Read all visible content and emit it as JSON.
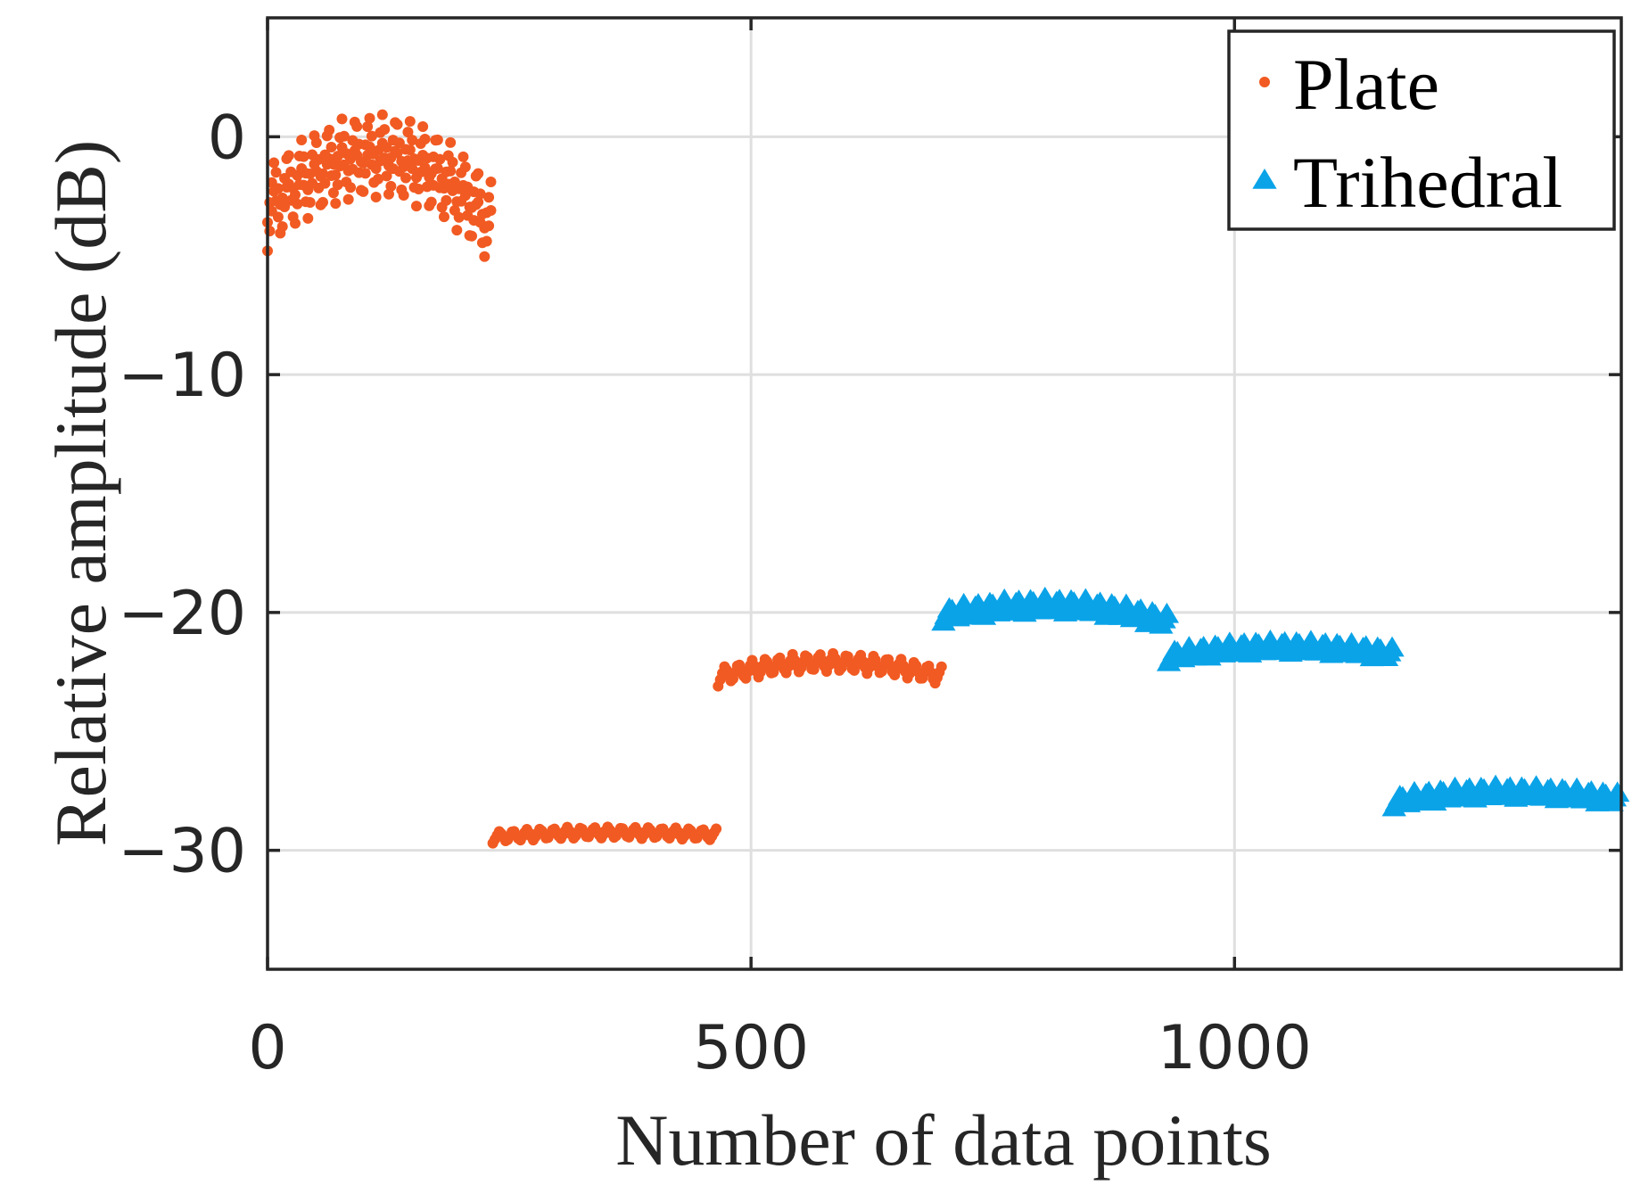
{
  "chart_data": {
    "type": "scatter",
    "xlabel": "Number of data points",
    "ylabel": "Relative amplitude (dB)",
    "xlim": [
      0,
      1400
    ],
    "ylim": [
      -35,
      5
    ],
    "x_ticks": [
      0,
      500,
      1000
    ],
    "x_tick_labels": [
      "0",
      "500",
      "1000"
    ],
    "y_ticks": [
      0,
      -10,
      -20,
      -30
    ],
    "y_tick_labels": [
      "0",
      "−10",
      "−20",
      "−30"
    ],
    "grid": true,
    "legend_position": "top-right",
    "series": [
      {
        "name": "Plate",
        "marker": "dot",
        "color": "#f15a22",
        "groups": [
          {
            "x_start": 0,
            "x_end": 233,
            "peak_x": 116,
            "peak": -0.2,
            "edge_left": -2.4,
            "edge_right": -3.2,
            "spread": 2.4
          },
          {
            "x_start": 233,
            "x_end": 466,
            "peak_x": 350,
            "peak": -29.0,
            "edge_left": -29.2,
            "edge_right": -29.1,
            "spread": 0.5
          },
          {
            "x_start": 466,
            "x_end": 699,
            "peak_x": 580,
            "peak": -21.7,
            "edge_left": -22.3,
            "edge_right": -22.3,
            "spread": 0.8
          }
        ]
      },
      {
        "name": "Trihedral",
        "marker": "triangle",
        "color": "#0aa3e8",
        "groups": [
          {
            "x_start": 699,
            "x_end": 932,
            "peak_x": 810,
            "peak": -19.4,
            "edge_left": -19.8,
            "edge_right": -20.1,
            "spread": 0.6
          },
          {
            "x_start": 932,
            "x_end": 1165,
            "peak_x": 1050,
            "peak": -21.2,
            "edge_left": -21.6,
            "edge_right": -21.5,
            "spread": 0.5
          },
          {
            "x_start": 1165,
            "x_end": 1398,
            "peak_x": 1280,
            "peak": -27.3,
            "edge_left": -27.7,
            "edge_right": -27.6,
            "spread": 0.5
          }
        ]
      }
    ]
  }
}
